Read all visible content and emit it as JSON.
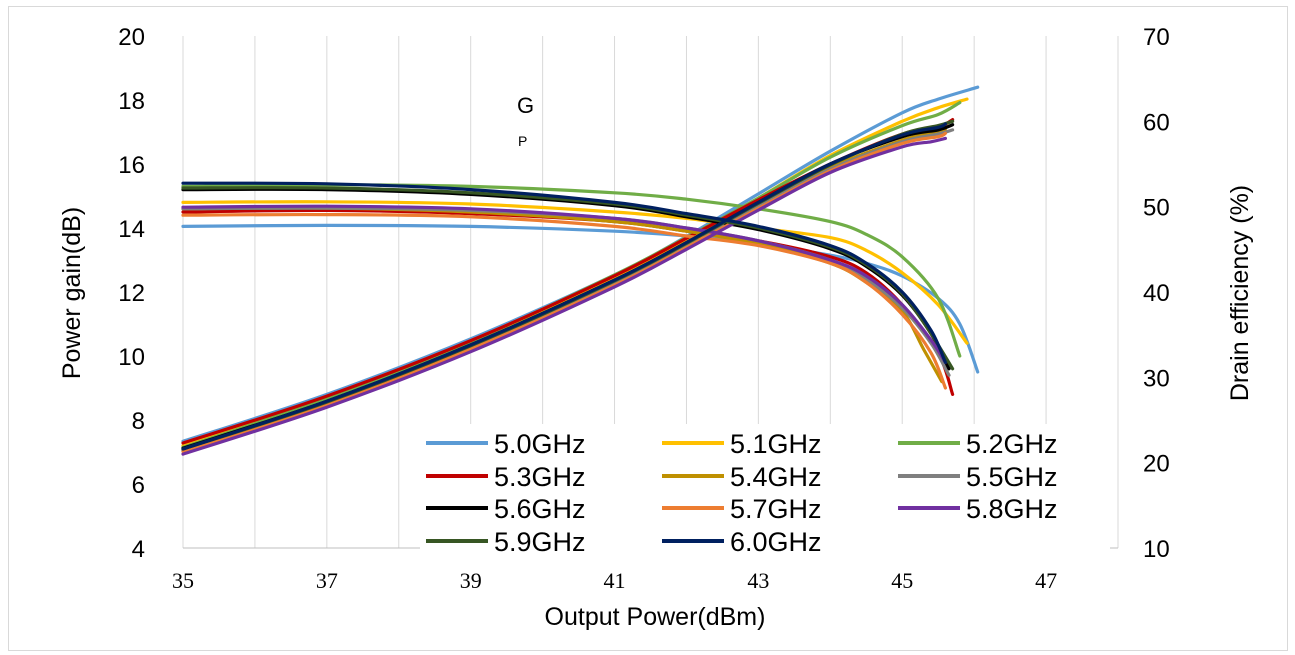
{
  "chart_data": {
    "type": "line",
    "x_axis": {
      "label": "Output Power(dBm)",
      "min": 35,
      "max": 48,
      "ticks": [
        35,
        37,
        39,
        41,
        43,
        45,
        47
      ]
    },
    "y_left": {
      "label": "Power gain(dB)",
      "min": 4,
      "max": 20,
      "ticks": [
        4,
        6,
        8,
        10,
        12,
        14,
        16,
        18,
        20
      ]
    },
    "y_right": {
      "label": "Drain efficiency (%)",
      "min": 10,
      "max": 70,
      "ticks": [
        10,
        20,
        30,
        40,
        50,
        60,
        70
      ]
    },
    "grid": "vertical",
    "annotation": {
      "main": "G",
      "sub": "P"
    },
    "series": [
      {
        "name": "5.0GHz",
        "color": "#5b9bd5",
        "gain": [
          [
            35,
            14.05
          ],
          [
            37,
            14.08
          ],
          [
            39,
            14.05
          ],
          [
            41,
            13.9
          ],
          [
            42,
            13.75
          ],
          [
            43,
            13.5
          ],
          [
            44,
            13.15
          ],
          [
            44.5,
            12.9
          ],
          [
            45,
            12.5
          ],
          [
            45.5,
            11.8
          ],
          [
            45.8,
            11.0
          ],
          [
            46.05,
            9.5
          ]
        ],
        "efficiency": [
          [
            35,
            22.5
          ],
          [
            37,
            28.0
          ],
          [
            39,
            34.5
          ],
          [
            41,
            42.0
          ],
          [
            42,
            46.5
          ],
          [
            43,
            51.5
          ],
          [
            44,
            56.5
          ],
          [
            45,
            61.0
          ],
          [
            45.5,
            62.6
          ],
          [
            46.05,
            64.0
          ]
        ]
      },
      {
        "name": "5.1GHz",
        "color": "#ffc000",
        "gain": [
          [
            35,
            14.8
          ],
          [
            37,
            14.82
          ],
          [
            39,
            14.75
          ],
          [
            41,
            14.5
          ],
          [
            42,
            14.3
          ],
          [
            43,
            14.0
          ],
          [
            44,
            13.7
          ],
          [
            44.5,
            13.3
          ],
          [
            45,
            12.6
          ],
          [
            45.5,
            11.6
          ],
          [
            45.9,
            10.4
          ]
        ],
        "efficiency": [
          [
            35,
            22.0
          ],
          [
            37,
            27.6
          ],
          [
            39,
            34.1
          ],
          [
            41,
            41.8
          ],
          [
            42,
            46.2
          ],
          [
            43,
            51.0
          ],
          [
            44,
            56.0
          ],
          [
            45,
            60.0
          ],
          [
            45.5,
            61.6
          ],
          [
            45.9,
            62.6
          ]
        ]
      },
      {
        "name": "5.2GHz",
        "color": "#70ad47",
        "gain": [
          [
            35,
            15.3
          ],
          [
            37,
            15.35
          ],
          [
            39,
            15.3
          ],
          [
            41,
            15.1
          ],
          [
            42,
            14.9
          ],
          [
            43,
            14.6
          ],
          [
            44,
            14.2
          ],
          [
            44.5,
            13.8
          ],
          [
            45,
            13.1
          ],
          [
            45.5,
            11.8
          ],
          [
            45.8,
            10.0
          ]
        ],
        "efficiency": [
          [
            35,
            21.8
          ],
          [
            37,
            27.5
          ],
          [
            39,
            34.2
          ],
          [
            41,
            42.0
          ],
          [
            42,
            46.4
          ],
          [
            43,
            51.0
          ],
          [
            44,
            55.8
          ],
          [
            45,
            59.5
          ],
          [
            45.5,
            60.8
          ],
          [
            45.8,
            62.2
          ]
        ]
      },
      {
        "name": "5.3GHz",
        "color": "#c00000",
        "gain": [
          [
            35,
            14.5
          ],
          [
            37,
            14.55
          ],
          [
            39,
            14.45
          ],
          [
            41,
            14.2
          ],
          [
            42,
            13.9
          ],
          [
            43,
            13.6
          ],
          [
            44,
            13.1
          ],
          [
            44.5,
            12.6
          ],
          [
            45,
            11.6
          ],
          [
            45.5,
            10.1
          ],
          [
            45.7,
            8.8
          ]
        ],
        "efficiency": [
          [
            35,
            22.3
          ],
          [
            37,
            27.8
          ],
          [
            39,
            34.3
          ],
          [
            41,
            41.9
          ],
          [
            42,
            46.3
          ],
          [
            43,
            50.8
          ],
          [
            44,
            55.0
          ],
          [
            45,
            58.5
          ],
          [
            45.5,
            59.3
          ],
          [
            45.7,
            60.2
          ]
        ]
      },
      {
        "name": "5.4GHz",
        "color": "#bf9000",
        "gain": [
          [
            35,
            14.6
          ],
          [
            37,
            14.62
          ],
          [
            39,
            14.5
          ],
          [
            41,
            14.2
          ],
          [
            42,
            13.9
          ],
          [
            43,
            13.5
          ],
          [
            44,
            12.9
          ],
          [
            44.5,
            12.3
          ],
          [
            45,
            11.4
          ],
          [
            45.3,
            10.2
          ],
          [
            45.55,
            9.2
          ]
        ],
        "efficiency": [
          [
            35,
            21.5
          ],
          [
            37,
            27.0
          ],
          [
            39,
            33.6
          ],
          [
            41,
            41.2
          ],
          [
            42,
            45.6
          ],
          [
            43,
            50.2
          ],
          [
            44,
            54.6
          ],
          [
            45,
            57.8
          ],
          [
            45.4,
            58.6
          ],
          [
            45.6,
            59.0
          ]
        ]
      },
      {
        "name": "5.5GHz",
        "color": "#7f7f7f",
        "gain": [
          [
            35,
            14.6
          ],
          [
            37,
            14.62
          ],
          [
            39,
            14.55
          ],
          [
            41,
            14.3
          ],
          [
            42,
            14.0
          ],
          [
            43,
            13.6
          ],
          [
            44,
            13.0
          ],
          [
            44.5,
            12.4
          ],
          [
            45,
            11.5
          ],
          [
            45.4,
            10.4
          ],
          [
            45.65,
            9.4
          ]
        ],
        "efficiency": [
          [
            35,
            21.4
          ],
          [
            37,
            26.9
          ],
          [
            39,
            33.4
          ],
          [
            41,
            41.0
          ],
          [
            42,
            45.3
          ],
          [
            43,
            50.0
          ],
          [
            44,
            54.4
          ],
          [
            45,
            57.6
          ],
          [
            45.5,
            58.5
          ],
          [
            45.7,
            59.0
          ]
        ]
      },
      {
        "name": "5.6GHz",
        "color": "#000000",
        "gain": [
          [
            35,
            15.2
          ],
          [
            37,
            15.2
          ],
          [
            39,
            15.05
          ],
          [
            41,
            14.7
          ],
          [
            42,
            14.35
          ],
          [
            43,
            13.95
          ],
          [
            44,
            13.35
          ],
          [
            44.5,
            12.8
          ],
          [
            45,
            11.9
          ],
          [
            45.4,
            10.7
          ],
          [
            45.65,
            9.6
          ]
        ],
        "efficiency": [
          [
            35,
            21.7
          ],
          [
            37,
            27.2
          ],
          [
            39,
            33.8
          ],
          [
            41,
            41.4
          ],
          [
            42,
            45.8
          ],
          [
            43,
            50.5
          ],
          [
            44,
            55.0
          ],
          [
            45,
            58.2
          ],
          [
            45.5,
            59.0
          ],
          [
            45.7,
            59.6
          ]
        ]
      },
      {
        "name": "5.7GHz",
        "color": "#ed7d31",
        "gain": [
          [
            35,
            14.4
          ],
          [
            37,
            14.42
          ],
          [
            39,
            14.35
          ],
          [
            41,
            14.05
          ],
          [
            42,
            13.75
          ],
          [
            43,
            13.45
          ],
          [
            44,
            12.9
          ],
          [
            44.5,
            12.3
          ],
          [
            45,
            11.3
          ],
          [
            45.4,
            10.1
          ],
          [
            45.6,
            9.0
          ]
        ],
        "efficiency": [
          [
            35,
            21.3
          ],
          [
            37,
            26.8
          ],
          [
            39,
            33.3
          ],
          [
            41,
            40.8
          ],
          [
            42,
            45.2
          ],
          [
            43,
            49.8
          ],
          [
            44,
            54.2
          ],
          [
            45,
            57.4
          ],
          [
            45.5,
            58.2
          ],
          [
            45.6,
            58.6
          ]
        ]
      },
      {
        "name": "5.8GHz",
        "color": "#7030a0",
        "gain": [
          [
            35,
            14.65
          ],
          [
            37,
            14.68
          ],
          [
            39,
            14.6
          ],
          [
            41,
            14.3
          ],
          [
            42,
            14.0
          ],
          [
            43,
            13.6
          ],
          [
            44,
            13.0
          ],
          [
            44.5,
            12.5
          ],
          [
            45,
            11.6
          ],
          [
            45.4,
            10.5
          ],
          [
            45.6,
            9.8
          ]
        ],
        "efficiency": [
          [
            35,
            21.0
          ],
          [
            37,
            26.5
          ],
          [
            39,
            33.0
          ],
          [
            41,
            40.6
          ],
          [
            42,
            45.0
          ],
          [
            43,
            49.6
          ],
          [
            44,
            54.0
          ],
          [
            45,
            57.0
          ],
          [
            45.4,
            57.6
          ],
          [
            45.6,
            58.0
          ]
        ]
      },
      {
        "name": "5.9GHz",
        "color": "#375623",
        "gain": [
          [
            35,
            15.25
          ],
          [
            37,
            15.25
          ],
          [
            39,
            15.1
          ],
          [
            41,
            14.75
          ],
          [
            42,
            14.4
          ],
          [
            43,
            14.0
          ],
          [
            44,
            13.4
          ],
          [
            44.5,
            12.85
          ],
          [
            45,
            11.95
          ],
          [
            45.4,
            10.7
          ],
          [
            45.7,
            9.6
          ]
        ],
        "efficiency": [
          [
            35,
            21.6
          ],
          [
            37,
            27.1
          ],
          [
            39,
            33.7
          ],
          [
            41,
            41.3
          ],
          [
            42,
            45.7
          ],
          [
            43,
            50.4
          ],
          [
            44,
            54.9
          ],
          [
            45,
            58.5
          ],
          [
            45.5,
            59.5
          ],
          [
            45.7,
            60.0
          ]
        ]
      },
      {
        "name": "6.0GHz",
        "color": "#002060",
        "gain": [
          [
            35,
            15.4
          ],
          [
            37,
            15.38
          ],
          [
            39,
            15.2
          ],
          [
            41,
            14.8
          ],
          [
            42,
            14.45
          ],
          [
            43,
            14.05
          ],
          [
            44,
            13.45
          ],
          [
            44.5,
            12.9
          ],
          [
            45,
            12.0
          ],
          [
            45.4,
            10.8
          ],
          [
            45.6,
            9.8
          ]
        ],
        "efficiency": [
          [
            35,
            21.6
          ],
          [
            37,
            27.2
          ],
          [
            39,
            33.8
          ],
          [
            41,
            41.4
          ],
          [
            42,
            45.8
          ],
          [
            43,
            50.5
          ],
          [
            44,
            55.0
          ],
          [
            45,
            58.4
          ],
          [
            45.5,
            59.3
          ],
          [
            45.6,
            59.7
          ]
        ]
      }
    ]
  }
}
